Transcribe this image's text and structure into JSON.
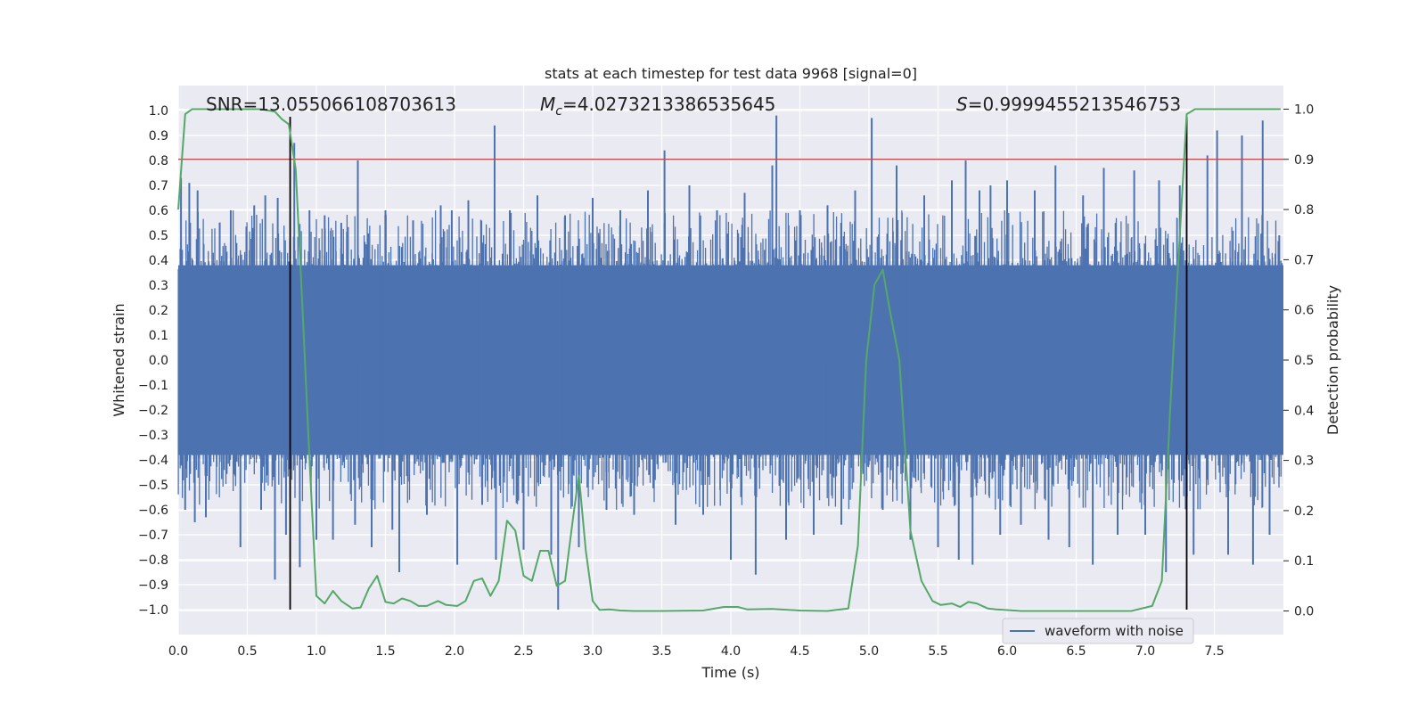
{
  "chart_data": {
    "type": "line",
    "title": "stats at each timestep for test data 9968 [signal=0]",
    "xlabel": "Time (s)",
    "ylabel_left": "Whitened strain",
    "ylabel_right": "Detection probability",
    "xlim": [
      0.0,
      8.0
    ],
    "ylim_left": [
      -1.1,
      1.1
    ],
    "ylim_right": [
      -0.047,
      1.047
    ],
    "x_ticks": [
      0.0,
      0.5,
      1.0,
      1.5,
      2.0,
      2.5,
      3.0,
      3.5,
      4.0,
      4.5,
      5.0,
      5.5,
      6.0,
      6.5,
      7.0,
      7.5
    ],
    "x_tick_labels": [
      "0.0",
      "0.5",
      "1.0",
      "1.5",
      "2.0",
      "2.5",
      "3.0",
      "3.5",
      "4.0",
      "4.5",
      "5.0",
      "5.5",
      "6.0",
      "6.5",
      "7.0",
      "7.5"
    ],
    "y_left_ticks": [
      1.0,
      0.9,
      0.8,
      0.7,
      0.6,
      0.5,
      0.4,
      0.3,
      0.2,
      0.1,
      0.0,
      -0.1,
      -0.2,
      -0.3,
      -0.4,
      -0.5,
      -0.6,
      -0.7,
      -0.8,
      -0.9,
      -1.0
    ],
    "y_left_tick_labels": [
      "1.0",
      "0.9",
      "0.8",
      "0.7",
      "0.6",
      "0.5",
      "0.4",
      "0.3",
      "0.2",
      "0.1",
      "0.0",
      "−0.1",
      "−0.2",
      "−0.3",
      "−0.4",
      "−0.5",
      "−0.6",
      "−0.7",
      "−0.8",
      "−0.9",
      "−1.0"
    ],
    "y_right_ticks": [
      1.0,
      0.9,
      0.8,
      0.7,
      0.6,
      0.5,
      0.4,
      0.3,
      0.2,
      0.1,
      0.0
    ],
    "y_right_tick_labels": [
      "1.0",
      "0.9",
      "0.8",
      "0.7",
      "0.6",
      "0.5",
      "0.4",
      "0.3",
      "0.2",
      "0.1",
      "0.0"
    ],
    "annotations": {
      "snr": "SNR=13.055066108703613",
      "mc_symbol": "M",
      "mc_subscript": "c",
      "mc_value": "=4.0273213386535645",
      "s_symbol": "S",
      "s_value": "=0.9999455213546753"
    },
    "threshold": {
      "y_right": 0.9,
      "color": "#c44e52"
    },
    "vertical_markers": [
      {
        "x": 0.81,
        "color": "#000000"
      },
      {
        "x": 7.3,
        "color": "#000000"
      }
    ],
    "series": [
      {
        "name": "waveform with noise",
        "axis": "left",
        "color": "#4c72b0",
        "noise_band": [
          -0.38,
          0.38
        ],
        "note": "dense whitened noise; band envelope plus representative peaks",
        "peaks": [
          [
            0.02,
            0.73
          ],
          [
            0.05,
            -0.6
          ],
          [
            0.08,
            0.71
          ],
          [
            0.12,
            -0.65
          ],
          [
            0.14,
            0.68
          ],
          [
            0.2,
            -0.63
          ],
          [
            0.3,
            0.55
          ],
          [
            0.38,
            0.6
          ],
          [
            0.45,
            -0.75
          ],
          [
            0.55,
            0.62
          ],
          [
            0.6,
            -0.6
          ],
          [
            0.63,
            0.66
          ],
          [
            0.7,
            -0.88
          ],
          [
            0.72,
            0.65
          ],
          [
            0.78,
            -0.7
          ],
          [
            0.84,
            0.87
          ],
          [
            0.88,
            -0.83
          ],
          [
            0.95,
            0.6
          ],
          [
            1.0,
            -0.72
          ],
          [
            1.06,
            0.58
          ],
          [
            1.12,
            -0.72
          ],
          [
            1.18,
            0.55
          ],
          [
            1.28,
            -0.66
          ],
          [
            1.3,
            0.8
          ],
          [
            1.4,
            -0.75
          ],
          [
            1.5,
            0.6
          ],
          [
            1.55,
            -0.68
          ],
          [
            1.6,
            -0.85
          ],
          [
            1.7,
            0.56
          ],
          [
            1.8,
            -0.62
          ],
          [
            1.9,
            0.62
          ],
          [
            1.98,
            0.6
          ],
          [
            2.02,
            -0.82
          ],
          [
            2.1,
            0.64
          ],
          [
            2.2,
            -0.58
          ],
          [
            2.29,
            0.94
          ],
          [
            2.3,
            -0.8
          ],
          [
            2.4,
            0.6
          ],
          [
            2.5,
            -0.76
          ],
          [
            2.6,
            0.66
          ],
          [
            2.7,
            -0.78
          ],
          [
            2.75,
            -1.0
          ],
          [
            2.8,
            0.58
          ],
          [
            2.9,
            -0.75
          ],
          [
            3.0,
            0.65
          ],
          [
            3.1,
            -0.6
          ],
          [
            3.2,
            0.6
          ],
          [
            3.3,
            -0.62
          ],
          [
            3.4,
            0.68
          ],
          [
            3.52,
            0.84
          ],
          [
            3.6,
            -0.66
          ],
          [
            3.7,
            0.7
          ],
          [
            3.8,
            -0.62
          ],
          [
            3.9,
            0.6
          ],
          [
            4.0,
            -0.8
          ],
          [
            4.1,
            0.67
          ],
          [
            4.18,
            -0.86
          ],
          [
            4.3,
            0.78
          ],
          [
            4.33,
            0.98
          ],
          [
            4.4,
            -0.72
          ],
          [
            4.5,
            0.6
          ],
          [
            4.6,
            -0.7
          ],
          [
            4.7,
            0.62
          ],
          [
            4.8,
            -0.66
          ],
          [
            4.9,
            0.68
          ],
          [
            5.02,
            0.97
          ],
          [
            5.1,
            -0.6
          ],
          [
            5.2,
            0.78
          ],
          [
            5.3,
            -0.72
          ],
          [
            5.4,
            0.66
          ],
          [
            5.5,
            -0.75
          ],
          [
            5.6,
            0.72
          ],
          [
            5.65,
            -0.8
          ],
          [
            5.7,
            0.8
          ],
          [
            5.75,
            -0.82
          ],
          [
            5.8,
            0.68
          ],
          [
            5.88,
            0.7
          ],
          [
            5.95,
            -0.7
          ],
          [
            6.0,
            0.72
          ],
          [
            6.1,
            -0.66
          ],
          [
            6.2,
            0.68
          ],
          [
            6.3,
            -0.72
          ],
          [
            6.35,
            0.78
          ],
          [
            6.45,
            -0.75
          ],
          [
            6.55,
            0.66
          ],
          [
            6.62,
            -0.82
          ],
          [
            6.7,
            0.77
          ],
          [
            6.8,
            -0.7
          ],
          [
            6.92,
            0.76
          ],
          [
            7.0,
            -0.7
          ],
          [
            7.1,
            0.72
          ],
          [
            7.15,
            -0.85
          ],
          [
            7.25,
            0.7
          ],
          [
            7.35,
            -0.78
          ],
          [
            7.45,
            0.82
          ],
          [
            7.52,
            0.92
          ],
          [
            7.6,
            -0.78
          ],
          [
            7.7,
            0.9
          ],
          [
            7.78,
            -0.82
          ],
          [
            7.85,
            0.96
          ],
          [
            7.9,
            -0.7
          ],
          [
            7.97,
            0.5
          ]
        ]
      },
      {
        "name": "detection probability",
        "axis": "right",
        "color": "#55a868",
        "x": [
          0.0,
          0.05,
          0.1,
          0.2,
          0.3,
          0.4,
          0.5,
          0.6,
          0.7,
          0.75,
          0.8,
          0.85,
          0.9,
          0.95,
          1.0,
          1.06,
          1.12,
          1.18,
          1.26,
          1.32,
          1.38,
          1.44,
          1.5,
          1.56,
          1.62,
          1.68,
          1.74,
          1.8,
          1.88,
          1.94,
          2.02,
          2.08,
          2.14,
          2.2,
          2.26,
          2.32,
          2.38,
          2.44,
          2.5,
          2.56,
          2.62,
          2.68,
          2.74,
          2.8,
          2.86,
          2.9,
          2.95,
          3.0,
          3.05,
          3.12,
          3.2,
          3.3,
          3.5,
          3.8,
          3.95,
          4.05,
          4.12,
          4.3,
          4.5,
          4.7,
          4.85,
          4.92,
          4.98,
          5.04,
          5.1,
          5.15,
          5.22,
          5.3,
          5.38,
          5.46,
          5.52,
          5.6,
          5.66,
          5.72,
          5.78,
          5.86,
          5.92,
          6.1,
          6.5,
          6.9,
          7.05,
          7.12,
          7.18,
          7.24,
          7.3,
          7.36,
          7.42,
          7.5,
          7.6,
          7.8,
          7.98
        ],
        "y": [
          0.8,
          0.99,
          1.0,
          1.0,
          1.0,
          1.0,
          1.0,
          1.0,
          0.995,
          0.98,
          0.97,
          0.88,
          0.6,
          0.3,
          0.03,
          0.015,
          0.04,
          0.02,
          0.005,
          0.007,
          0.045,
          0.07,
          0.018,
          0.015,
          0.025,
          0.02,
          0.01,
          0.01,
          0.02,
          0.012,
          0.01,
          0.02,
          0.06,
          0.065,
          0.03,
          0.06,
          0.18,
          0.16,
          0.07,
          0.06,
          0.12,
          0.12,
          0.05,
          0.06,
          0.19,
          0.27,
          0.12,
          0.02,
          0.002,
          0.003,
          0.001,
          0.0,
          0.0,
          0.001,
          0.008,
          0.008,
          0.003,
          0.004,
          0.001,
          0.0,
          0.005,
          0.13,
          0.5,
          0.65,
          0.68,
          0.6,
          0.5,
          0.16,
          0.06,
          0.02,
          0.012,
          0.015,
          0.008,
          0.018,
          0.015,
          0.005,
          0.003,
          0.0,
          0.0,
          0.0,
          0.01,
          0.06,
          0.4,
          0.7,
          0.99,
          1.0,
          1.0,
          1.0,
          1.0,
          1.0,
          1.0
        ]
      }
    ],
    "legend": {
      "label": "waveform with noise",
      "placement": "lower-right"
    }
  }
}
